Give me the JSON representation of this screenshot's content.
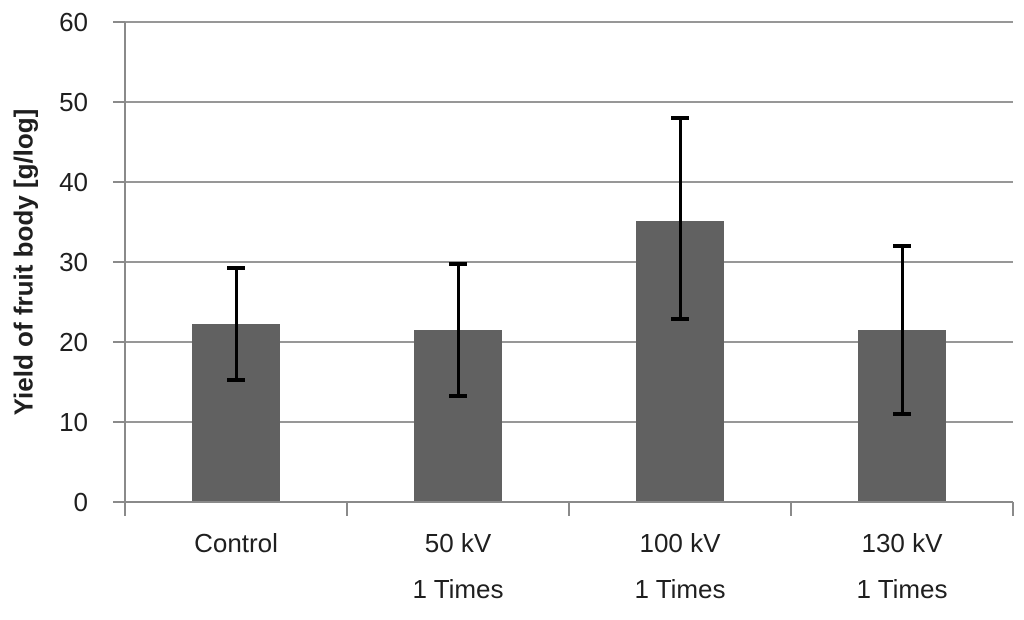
{
  "chart_data": {
    "type": "bar",
    "title": "",
    "xlabel": "",
    "ylabel": "Yield of fruit body [g/log]",
    "ylim": [
      0,
      60
    ],
    "yticks": [
      0,
      10,
      20,
      30,
      40,
      50,
      60
    ],
    "grid": "horizontal",
    "legend": "none",
    "categories": [
      "Control",
      "50 kV",
      "100 kV",
      "130 kV"
    ],
    "category_sublabels": [
      "",
      "1 Times",
      "1 Times",
      "1 Times"
    ],
    "series": [
      {
        "name": "Yield of fruit body",
        "values": [
          22.3,
          21.5,
          35.1,
          21.5
        ],
        "error_whisker_upper": [
          29.2,
          29.8,
          48.0,
          32.0
        ],
        "error_whisker_lower": [
          15.3,
          13.3,
          22.9,
          11.0
        ]
      }
    ],
    "colors": {
      "bar_fill": "#616161",
      "error_bar": "#000000",
      "gridline": "#979797",
      "axis_line": "#8a8a8a",
      "text": "#1f1f1f",
      "background": "#ffffff"
    }
  }
}
